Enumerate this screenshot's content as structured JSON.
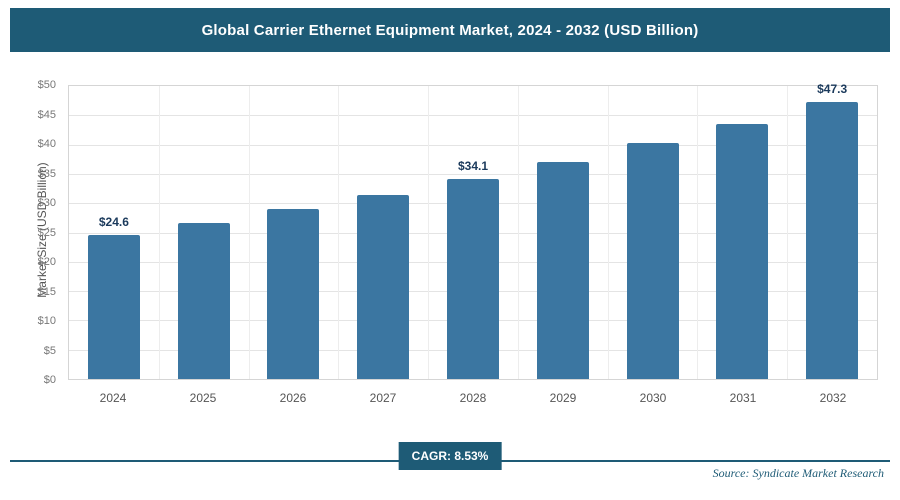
{
  "header": {
    "title": "Global Carrier Ethernet Equipment Market, 2024 - 2032 (USD Billion)"
  },
  "chart_data": {
    "type": "bar",
    "title": "Global Carrier Ethernet Equipment Market, 2024 - 2032 (USD Billion)",
    "categories": [
      "2024",
      "2025",
      "2026",
      "2027",
      "2028",
      "2029",
      "2030",
      "2031",
      "2032"
    ],
    "values": [
      24.6,
      26.7,
      29.0,
      31.4,
      34.1,
      37.0,
      40.2,
      43.6,
      47.3
    ],
    "labeled_points": {
      "0": "$24.6",
      "4": "$34.1",
      "8": "$47.3"
    },
    "xlabel": "",
    "ylabel": "Market Size (USD Billion)",
    "ylim": [
      0,
      50
    ],
    "ytick_step": 5,
    "ytick_prefix": "$",
    "grid": true,
    "legend": "none",
    "bar_color": "#3b76a1",
    "value_label_color": "#1b3a5c"
  },
  "footer": {
    "cagr_label": "CAGR: 8.53%",
    "source": "Source: Syndicate Market Research"
  },
  "colors": {
    "accent": "#1e5b76",
    "bar": "#3b76a1"
  }
}
